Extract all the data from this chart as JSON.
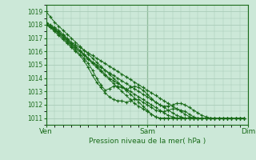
{
  "xlabel": "Pression niveau de la mer( hPa )",
  "ylim": [
    1010.5,
    1019.5
  ],
  "xlim": [
    0,
    48
  ],
  "yticks": [
    1011,
    1012,
    1013,
    1014,
    1015,
    1016,
    1017,
    1018,
    1019
  ],
  "xtick_positions": [
    0,
    24,
    48
  ],
  "xtick_labels": [
    "Ven",
    "Sam",
    "Dim"
  ],
  "bg_color": "#cce8d8",
  "grid_color": "#aaccb8",
  "line_color": "#1a6b1a",
  "series": [
    [
      1019.0,
      1018.6,
      1018.2,
      1017.9,
      1017.6,
      1017.3,
      1017.0,
      1016.7,
      1016.4,
      1016.1,
      1015.8,
      1015.5,
      1015.2,
      1014.9,
      1014.6,
      1014.3,
      1014.0,
      1013.7,
      1013.4,
      1013.1,
      1012.8,
      1012.5,
      1012.2,
      1011.9,
      1011.6,
      1011.3,
      1011.1,
      1011.0,
      1011.0,
      1011.0,
      1011.0,
      1011.0,
      1011.0,
      1011.0,
      1011.0,
      1011.0,
      1011.0,
      1011.0,
      1011.0,
      1011.0,
      1011.0,
      1011.0,
      1011.0,
      1011.0,
      1011.0,
      1011.0,
      1011.0,
      1011.0
    ],
    [
      1018.0,
      1017.8,
      1017.6,
      1017.4,
      1017.2,
      1016.9,
      1016.6,
      1016.3,
      1016.0,
      1015.7,
      1015.4,
      1015.1,
      1014.8,
      1014.5,
      1014.2,
      1013.9,
      1013.6,
      1013.3,
      1013.0,
      1012.7,
      1012.4,
      1012.1,
      1011.9,
      1011.7,
      1011.5,
      1011.3,
      1011.1,
      1011.0,
      1011.0,
      1011.0,
      1011.0,
      1011.0,
      1011.0,
      1011.0,
      1011.0,
      1011.0,
      1011.0,
      1011.0,
      1011.0,
      1011.0,
      1011.0,
      1011.0,
      1011.0,
      1011.0,
      1011.0,
      1011.0,
      1011.0,
      1011.0
    ],
    [
      1018.1,
      1017.9,
      1017.7,
      1017.4,
      1017.1,
      1016.8,
      1016.5,
      1016.2,
      1016.0,
      1015.8,
      1015.5,
      1015.2,
      1014.9,
      1014.6,
      1014.3,
      1014.0,
      1013.8,
      1013.6,
      1013.4,
      1013.2,
      1013.0,
      1012.8,
      1012.6,
      1012.4,
      1012.2,
      1012.0,
      1011.8,
      1011.6,
      1011.4,
      1011.2,
      1011.1,
      1011.0,
      1011.0,
      1011.0,
      1011.0,
      1011.0,
      1011.0,
      1011.0,
      1011.0,
      1011.0,
      1011.0,
      1011.0,
      1011.0,
      1011.0,
      1011.0,
      1011.0,
      1011.0,
      1011.0
    ],
    [
      1018.1,
      1017.9,
      1017.7,
      1017.5,
      1017.2,
      1016.9,
      1016.6,
      1016.4,
      1016.1,
      1015.8,
      1015.5,
      1015.2,
      1015.0,
      1014.8,
      1014.6,
      1014.4,
      1014.2,
      1014.0,
      1013.8,
      1013.6,
      1013.4,
      1013.2,
      1013.0,
      1012.8,
      1012.6,
      1012.4,
      1012.2,
      1012.0,
      1011.8,
      1011.6,
      1011.4,
      1011.2,
      1011.1,
      1011.0,
      1011.0,
      1011.0,
      1011.0,
      1011.0,
      1011.0,
      1011.0,
      1011.0,
      1011.0,
      1011.0,
      1011.0,
      1011.0,
      1011.0,
      1011.0,
      1011.0
    ],
    [
      1018.2,
      1018.0,
      1017.8,
      1017.6,
      1017.3,
      1017.0,
      1016.7,
      1016.5,
      1016.3,
      1016.1,
      1015.9,
      1015.7,
      1015.5,
      1015.3,
      1015.1,
      1014.9,
      1014.7,
      1014.5,
      1014.3,
      1014.1,
      1013.9,
      1013.7,
      1013.5,
      1013.3,
      1013.1,
      1012.9,
      1012.7,
      1012.5,
      1012.3,
      1012.1,
      1011.9,
      1011.7,
      1011.5,
      1011.3,
      1011.1,
      1011.0,
      1011.0,
      1011.0,
      1011.0,
      1011.0,
      1011.0,
      1011.0,
      1011.0,
      1011.0,
      1011.0,
      1011.0,
      1011.0,
      1011.0
    ]
  ],
  "series_diverge": [
    [
      1018.1,
      1017.9,
      1017.6,
      1017.3,
      1017.0,
      1016.7,
      1016.4,
      1016.1,
      1015.8,
      1015.5,
      1015.1,
      1014.6,
      1014.0,
      1013.5,
      1013.1,
      1013.2,
      1013.4,
      1013.4,
      1013.3,
      1013.1,
      1013.3,
      1013.4,
      1013.3,
      1013.1,
      1012.8,
      1012.5,
      1012.2,
      1012.0,
      1011.9,
      1011.9,
      1012.0,
      1012.1,
      1012.1,
      1012.0,
      1011.8,
      1011.6,
      1011.4,
      1011.2,
      1011.1,
      1011.0,
      1011.0,
      1011.0,
      1011.0,
      1011.0,
      1011.0,
      1011.0,
      1011.0,
      1011.0
    ],
    [
      1018.0,
      1017.8,
      1017.5,
      1017.2,
      1016.9,
      1016.6,
      1016.3,
      1016.0,
      1015.7,
      1015.3,
      1014.8,
      1014.2,
      1013.7,
      1013.3,
      1012.9,
      1012.6,
      1012.4,
      1012.3,
      1012.3,
      1012.2,
      1012.3,
      1012.4,
      1012.4,
      1012.2,
      1012.0,
      1011.8,
      1011.6,
      1011.5,
      1011.5,
      1011.6,
      1011.7,
      1011.7,
      1011.6,
      1011.5,
      1011.3,
      1011.1,
      1011.0,
      1011.0,
      1011.0,
      1011.0,
      1011.0,
      1011.0,
      1011.0,
      1011.0,
      1011.0,
      1011.0,
      1011.0,
      1011.0
    ]
  ]
}
